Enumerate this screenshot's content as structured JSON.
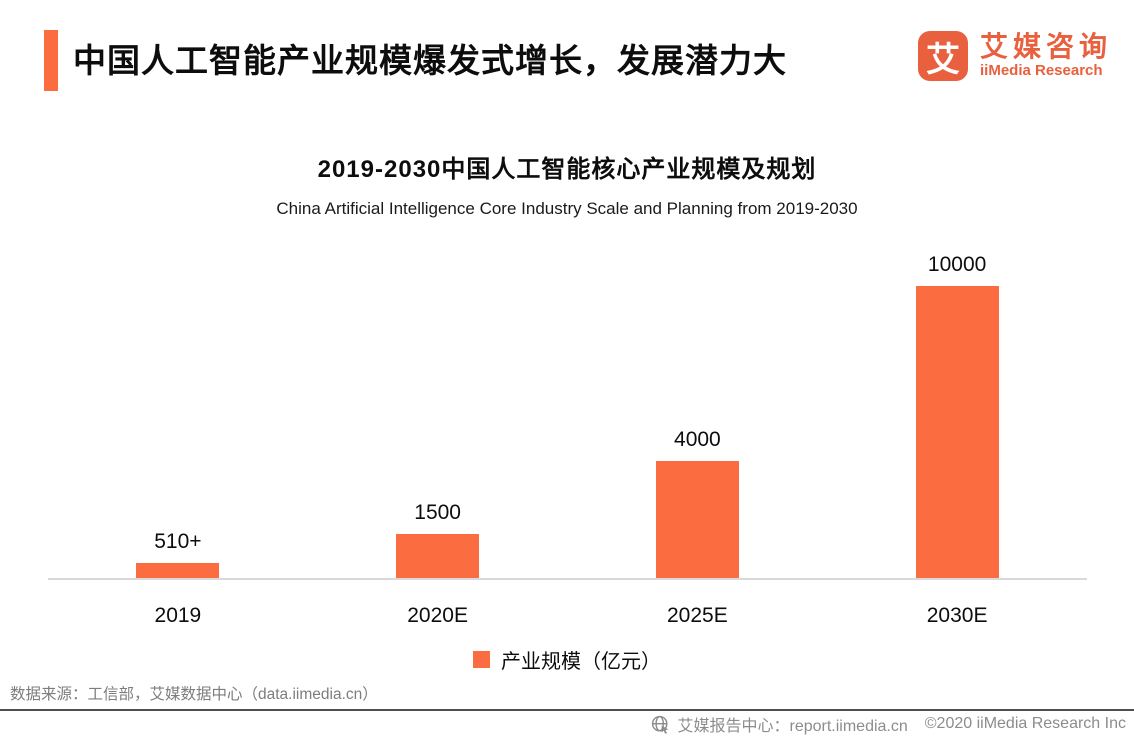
{
  "header": {
    "title": "中国人工智能产业规模爆发式增长，发展潜力大",
    "logo": {
      "mark_glyph": "艾",
      "brand_cn": "艾媒咨询",
      "brand_en": "iiMedia Research"
    }
  },
  "chart_data": {
    "type": "bar",
    "title": "2019-2030中国人工智能核心产业规模及规划",
    "subtitle": "China Artificial Intelligence Core Industry Scale and Planning from 2019-2030",
    "categories": [
      "2019",
      "2020E",
      "2025E",
      "2030E"
    ],
    "values": [
      510,
      1500,
      4000,
      10000
    ],
    "value_labels": [
      "510+",
      "1500",
      "4000",
      "10000"
    ],
    "series_name": "产业规模（亿元）",
    "unit": "亿元",
    "ylim": [
      0,
      10000
    ],
    "grid": false,
    "legend_position": "bottom",
    "bar_color": "#FB6C41"
  },
  "legend": {
    "label": "产业规模（亿元）"
  },
  "source_note": "数据来源：工信部，艾媒数据中心（data.iimedia.cn）",
  "footer": {
    "report_center": "艾媒报告中心：report.iimedia.cn",
    "copyright": "©2020  iiMedia Research Inc"
  },
  "colors": {
    "accent": "#FB6C41",
    "logo_orange": "#E8603E",
    "axis_line": "#D9D9D9",
    "divider": "#4F4F4F",
    "source_text": "#7D7D7D",
    "footer_text": "#8C8C8C"
  }
}
